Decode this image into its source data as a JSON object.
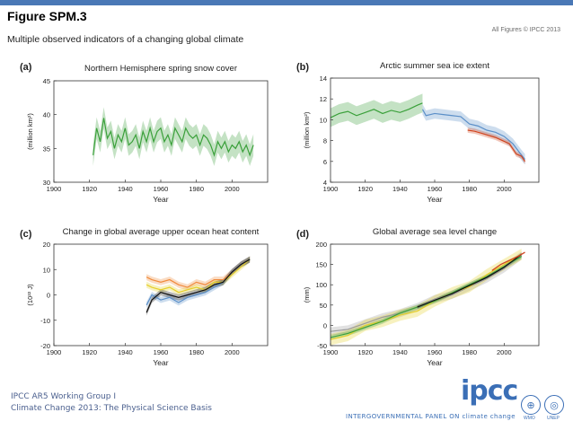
{
  "header": {
    "title": "Figure SPM.3",
    "subtitle": "Multiple observed indicators of a changing global climate",
    "credit": "All Figures © IPCC 2013"
  },
  "footer": {
    "line1": "IPCC AR5 Working Group I",
    "line2": "Climate Change 2013: The Physical Science Basis",
    "logo": "ipcc",
    "panel_name": "INTERGOVERNMENTAL PANEL ON climate change",
    "wmo": "WMO",
    "unep": "UNEP"
  },
  "colors": {
    "green": "#3aa03a",
    "blue": "#5b8fc8",
    "red": "#d0441f",
    "orange": "#f08a3c",
    "yellow": "#e6cf2a",
    "black": "#111111",
    "grey": "#9a9a9a"
  },
  "chart_data": [
    {
      "type": "line",
      "panel": "(a)",
      "title": "Northern Hemisphere spring snow cover",
      "xlabel": "Year",
      "ylabel": "(million km²)",
      "xlim": [
        1900,
        2020
      ],
      "ylim": [
        30,
        45
      ],
      "xticks": [
        1900,
        1920,
        1940,
        1960,
        1980,
        2000
      ],
      "yticks": [
        30,
        35,
        40,
        45
      ],
      "series": [
        {
          "name": "snow cover",
          "color": "#3aa03a",
          "x": [
            1922,
            1924,
            1926,
            1928,
            1930,
            1932,
            1934,
            1936,
            1938,
            1940,
            1942,
            1944,
            1946,
            1948,
            1950,
            1952,
            1954,
            1956,
            1958,
            1960,
            1962,
            1964,
            1966,
            1968,
            1970,
            1972,
            1974,
            1976,
            1978,
            1980,
            1982,
            1984,
            1986,
            1988,
            1990,
            1992,
            1994,
            1996,
            1998,
            2000,
            2002,
            2004,
            2006,
            2008,
            2010,
            2012
          ],
          "y": [
            34,
            38,
            36,
            39.5,
            36.5,
            37.5,
            35,
            37,
            36,
            38,
            35.5,
            36,
            37,
            35,
            37.5,
            36,
            38,
            36,
            37.5,
            38,
            36,
            37,
            35.5,
            38,
            37,
            36,
            38,
            37,
            36.5,
            37,
            35.5,
            37,
            36.5,
            35.5,
            34,
            36,
            35,
            36,
            34.5,
            35.5,
            35,
            36,
            34.5,
            35.5,
            34,
            35.5
          ],
          "band": 1.6
        }
      ]
    },
    {
      "type": "line",
      "panel": "(b)",
      "title": "Arctic summer sea ice extent",
      "xlabel": "Year",
      "ylabel": "(million km²)",
      "xlim": [
        1900,
        2020
      ],
      "ylim": [
        4,
        14
      ],
      "xticks": [
        1900,
        1920,
        1940,
        1960,
        1980,
        2000
      ],
      "yticks": [
        4,
        6,
        8,
        10,
        12,
        14
      ],
      "series": [
        {
          "name": "early record",
          "color": "#3aa03a",
          "x": [
            1900,
            1905,
            1910,
            1915,
            1920,
            1925,
            1930,
            1935,
            1940,
            1945,
            1950,
            1953
          ],
          "y": [
            10.2,
            10.6,
            10.8,
            10.4,
            10.7,
            11.0,
            10.6,
            10.9,
            10.7,
            11.0,
            11.4,
            11.6
          ],
          "band": 0.9
        },
        {
          "name": "blue estimate",
          "color": "#5b8fc8",
          "x": [
            1953,
            1955,
            1960,
            1965,
            1970,
            1975,
            1980,
            1985,
            1990,
            1995,
            2000,
            2005,
            2010,
            2012
          ],
          "y": [
            11.0,
            10.4,
            10.6,
            10.5,
            10.4,
            10.3,
            9.6,
            9.4,
            9.0,
            8.8,
            8.4,
            7.7,
            6.6,
            6.2
          ],
          "band": 0.5
        },
        {
          "name": "red estimate",
          "color": "#d0441f",
          "x": [
            1979,
            1983,
            1987,
            1991,
            1995,
            1999,
            2003,
            2007,
            2010,
            2012
          ],
          "y": [
            9.0,
            8.9,
            8.7,
            8.5,
            8.3,
            8.0,
            7.7,
            6.7,
            6.5,
            6.0
          ],
          "band": 0.25
        }
      ]
    },
    {
      "type": "line",
      "panel": "(c)",
      "title": "Change in global average upper ocean heat content",
      "xlabel": "Year",
      "ylabel": "(10²² J)",
      "xlim": [
        1900,
        2020
      ],
      "ylim": [
        -20,
        20
      ],
      "xticks": [
        1900,
        1920,
        1940,
        1960,
        1980,
        2000
      ],
      "yticks": [
        -20,
        -10,
        0,
        10,
        20
      ],
      "series": [
        {
          "name": "orange",
          "color": "#f08a3c",
          "x": [
            1952,
            1955,
            1960,
            1965,
            1970,
            1975,
            1980,
            1985,
            1990,
            1995,
            2000,
            2005,
            2010
          ],
          "y": [
            7,
            6,
            5,
            6,
            4,
            3,
            5,
            4,
            6,
            6,
            9,
            12,
            14
          ],
          "band": 1.2
        },
        {
          "name": "yellow",
          "color": "#e6cf2a",
          "x": [
            1952,
            1955,
            1960,
            1965,
            1970,
            1975,
            1980,
            1985,
            1990,
            1995,
            2000,
            2005,
            2010
          ],
          "y": [
            4,
            3,
            2,
            3,
            1,
            2,
            3,
            2,
            5,
            5,
            8,
            11,
            14
          ],
          "band": 1.2
        },
        {
          "name": "blue",
          "color": "#5b8fc8",
          "x": [
            1952,
            1955,
            1960,
            1965,
            1970,
            1975,
            1980,
            1985,
            1990,
            1995,
            2000,
            2005,
            2010
          ],
          "y": [
            -4,
            0,
            -2,
            -1,
            -3,
            -1,
            0,
            1,
            3,
            5,
            9,
            12,
            14
          ],
          "band": 1.2
        },
        {
          "name": "black",
          "color": "#111111",
          "x": [
            1952,
            1955,
            1960,
            1965,
            1970,
            1975,
            1980,
            1985,
            1990,
            1995,
            2000,
            2005,
            2010
          ],
          "y": [
            -7,
            -2,
            1,
            0,
            -1,
            0,
            1,
            2,
            4,
            5,
            9,
            12,
            14
          ],
          "band": 1.2
        }
      ]
    },
    {
      "type": "line",
      "panel": "(d)",
      "title": "Global average sea level change",
      "xlabel": "Year",
      "ylabel": "(mm)",
      "xlim": [
        1900,
        2020
      ],
      "ylim": [
        -50,
        200
      ],
      "xticks": [
        1900,
        1920,
        1940,
        1960,
        1980,
        2000
      ],
      "yticks": [
        -50,
        0,
        50,
        100,
        150,
        200
      ],
      "series": [
        {
          "name": "grey",
          "color": "#9a9a9a",
          "x": [
            1900,
            1910,
            1920,
            1930,
            1940,
            1950,
            1960,
            1970,
            1980,
            1990,
            2000,
            2010
          ],
          "y": [
            -15,
            -10,
            5,
            20,
            30,
            45,
            65,
            75,
            95,
            115,
            140,
            172
          ],
          "band": 10
        },
        {
          "name": "yellow",
          "color": "#e6cf2a",
          "x": [
            1900,
            1910,
            1920,
            1930,
            1940,
            1950,
            1960,
            1970,
            1980,
            1990,
            2000,
            2010
          ],
          "y": [
            -35,
            -25,
            0,
            10,
            25,
            35,
            60,
            80,
            95,
            125,
            150,
            175
          ],
          "band": 14
        },
        {
          "name": "green",
          "color": "#3aa03a",
          "x": [
            1900,
            1910,
            1920,
            1930,
            1940,
            1950,
            1960,
            1970,
            1980,
            1990,
            2000,
            2010
          ],
          "y": [
            -30,
            -20,
            -5,
            10,
            30,
            45,
            60,
            80,
            100,
            120,
            145,
            170
          ],
          "band": 6
        },
        {
          "name": "black",
          "color": "#111111",
          "x": [
            1950,
            1960,
            1970,
            1980,
            1990,
            2000,
            2010
          ],
          "y": [
            45,
            62,
            78,
            98,
            118,
            143,
            175
          ],
          "band": 4
        },
        {
          "name": "red",
          "color": "#d0441f",
          "x": [
            1993,
            1998,
            2003,
            2008,
            2012
          ],
          "y": [
            135,
            150,
            160,
            170,
            180
          ],
          "band": 2
        }
      ]
    }
  ]
}
